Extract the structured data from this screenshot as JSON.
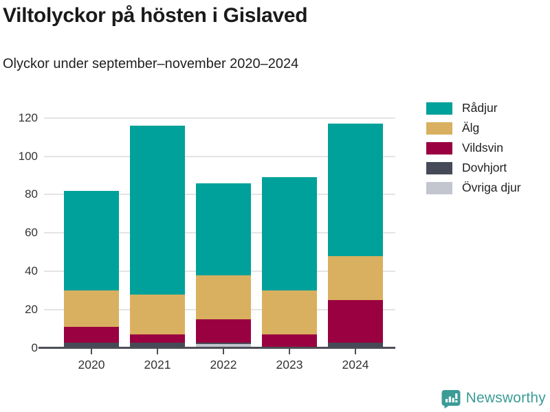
{
  "header": {
    "title": "Viltolyckor på hösten i Gislaved",
    "subtitle": "Olyckor under september–november 2020–2024"
  },
  "chart_data": {
    "type": "bar",
    "stacked": true,
    "title": "Viltolyckor på hösten i Gislaved",
    "subtitle": "Olyckor under september–november 2020–2024",
    "categories": [
      "2020",
      "2021",
      "2022",
      "2023",
      "2024"
    ],
    "series": [
      {
        "name": "Rådjur",
        "color": "#00A19A",
        "values": [
          52,
          88,
          48,
          59,
          69
        ]
      },
      {
        "name": "Älg",
        "color": "#D9B05F",
        "values": [
          19,
          21,
          23,
          23,
          23
        ]
      },
      {
        "name": "Vildsvin",
        "color": "#990140",
        "values": [
          8,
          4,
          12,
          7,
          22
        ]
      },
      {
        "name": "Dovhjort",
        "color": "#464A58",
        "values": [
          3,
          3,
          1,
          0,
          3
        ]
      },
      {
        "name": "Övriga djur",
        "color": "#C3C6CE",
        "values": [
          0,
          0,
          2,
          0,
          0
        ]
      }
    ],
    "stack_order_bottom_to_top": [
      "Övriga djur",
      "Dovhjort",
      "Vildsvin",
      "Älg",
      "Rådjur"
    ],
    "totals": [
      82,
      116,
      86,
      89,
      117
    ],
    "xlabel": "",
    "ylabel": "",
    "ylim": [
      0,
      120
    ],
    "yticks": [
      0,
      20,
      40,
      60,
      80,
      100,
      120
    ],
    "grid": "horizontal",
    "legend_position": "right"
  },
  "footer": {
    "brand": "Newsworthy"
  },
  "colors": {
    "accent_teal": "#00A19A",
    "brand_teal": "#3B9C96",
    "axis": "#4B4E55",
    "gridline": "#E4E4E4",
    "text_dark": "#1A1A1A",
    "tick_text": "#333333"
  }
}
